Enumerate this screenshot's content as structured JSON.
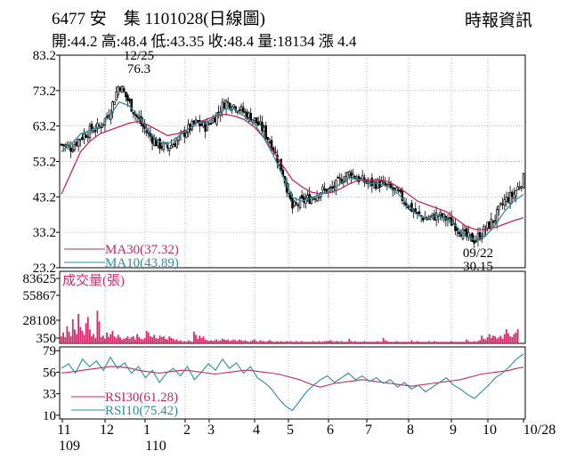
{
  "header": {
    "title": "6477 安　集 1101028(日線圖)",
    "source": "時報資訊",
    "stats": "開:44.2 高:48.4 低:43.35 收:48.4 量:18134 漲 4.4"
  },
  "colors": {
    "candle": "#000000",
    "ma30": "#c8285a",
    "ma10": "#2d8ca0",
    "volume": "#d8286e",
    "rsi30": "#c8285a",
    "rsi10": "#2d8ca0",
    "grid": "#999999"
  },
  "chart_data": [
    {
      "type": "candlestick",
      "panel": "price",
      "y_ticks": [
        "83.2",
        "73.2",
        "63.2",
        "53.2",
        "43.2",
        "33.2",
        "23.2"
      ],
      "ylim": [
        23.2,
        83.2
      ],
      "x_labels": [
        "11",
        "12",
        "1",
        "2",
        "3",
        "4",
        "5",
        "6",
        "7",
        "8",
        "9",
        "10",
        "10/28"
      ],
      "year_labels": [
        "109",
        "110"
      ],
      "annotations": [
        {
          "date": "12/25",
          "value": "76.3"
        },
        {
          "date": "09/22",
          "value": "30.15"
        }
      ],
      "series": [
        {
          "name": "MA30(37.32)",
          "type": "line"
        },
        {
          "name": "MA10(43.89)",
          "type": "line"
        }
      ],
      "close_path": [
        [
          0,
          58
        ],
        [
          5,
          57
        ],
        [
          10,
          60
        ],
        [
          15,
          62
        ],
        [
          20,
          63
        ],
        [
          25,
          67
        ],
        [
          30,
          75
        ],
        [
          35,
          70
        ],
        [
          40,
          65
        ],
        [
          45,
          61
        ],
        [
          50,
          58
        ],
        [
          55,
          57
        ],
        [
          60,
          59
        ],
        [
          65,
          62
        ],
        [
          70,
          64
        ],
        [
          75,
          63
        ],
        [
          80,
          66
        ],
        [
          85,
          70
        ],
        [
          90,
          69
        ],
        [
          95,
          67
        ],
        [
          100,
          65
        ],
        [
          105,
          62
        ],
        [
          110,
          57
        ],
        [
          115,
          50
        ],
        [
          120,
          40
        ],
        [
          125,
          42
        ],
        [
          130,
          43
        ],
        [
          135,
          45
        ],
        [
          140,
          45
        ],
        [
          145,
          48
        ],
        [
          150,
          50
        ],
        [
          155,
          48
        ],
        [
          160,
          47
        ],
        [
          165,
          47
        ],
        [
          170,
          46
        ],
        [
          175,
          44
        ],
        [
          180,
          41
        ],
        [
          185,
          38
        ],
        [
          190,
          37
        ],
        [
          195,
          38
        ],
        [
          200,
          37
        ],
        [
          205,
          35
        ],
        [
          210,
          32
        ],
        [
          215,
          31
        ],
        [
          220,
          34
        ],
        [
          225,
          37
        ],
        [
          230,
          42
        ],
        [
          235,
          44
        ],
        [
          240,
          48.4
        ]
      ],
      "ma30_path": [
        [
          0,
          44
        ],
        [
          5,
          50
        ],
        [
          10,
          56
        ],
        [
          15,
          59
        ],
        [
          20,
          61
        ],
        [
          25,
          62
        ],
        [
          30,
          63
        ],
        [
          35,
          64
        ],
        [
          40,
          64.5
        ],
        [
          45,
          63.5
        ],
        [
          50,
          62
        ],
        [
          55,
          60.5
        ],
        [
          60,
          61
        ],
        [
          65,
          62
        ],
        [
          70,
          64
        ],
        [
          75,
          65
        ],
        [
          80,
          66
        ],
        [
          85,
          66.5
        ],
        [
          90,
          66
        ],
        [
          95,
          65
        ],
        [
          100,
          63
        ],
        [
          105,
          60
        ],
        [
          110,
          56
        ],
        [
          115,
          52
        ],
        [
          120,
          48
        ],
        [
          125,
          46
        ],
        [
          130,
          44.5
        ],
        [
          135,
          44
        ],
        [
          140,
          44.5
        ],
        [
          145,
          45.5
        ],
        [
          150,
          47
        ],
        [
          155,
          48
        ],
        [
          160,
          48
        ],
        [
          165,
          48
        ],
        [
          170,
          47.5
        ],
        [
          175,
          46
        ],
        [
          180,
          44
        ],
        [
          185,
          42
        ],
        [
          190,
          41
        ],
        [
          195,
          40
        ],
        [
          200,
          39
        ],
        [
          205,
          37
        ],
        [
          210,
          35
        ],
        [
          215,
          34
        ],
        [
          220,
          34
        ],
        [
          225,
          34.5
        ],
        [
          230,
          35.5
        ],
        [
          235,
          36.5
        ],
        [
          240,
          37.3
        ]
      ],
      "ma10_path": [
        [
          0,
          56
        ],
        [
          5,
          58
        ],
        [
          10,
          61
        ],
        [
          15,
          62
        ],
        [
          20,
          63
        ],
        [
          25,
          66
        ],
        [
          30,
          70
        ],
        [
          35,
          69
        ],
        [
          40,
          66
        ],
        [
          45,
          62
        ],
        [
          50,
          59
        ],
        [
          55,
          58
        ],
        [
          60,
          60
        ],
        [
          65,
          62
        ],
        [
          70,
          64
        ],
        [
          75,
          64
        ],
        [
          80,
          66
        ],
        [
          85,
          68
        ],
        [
          90,
          68
        ],
        [
          95,
          66
        ],
        [
          100,
          64
        ],
        [
          105,
          60
        ],
        [
          110,
          55
        ],
        [
          115,
          49
        ],
        [
          120,
          43
        ],
        [
          125,
          42
        ],
        [
          130,
          43
        ],
        [
          135,
          44
        ],
        [
          140,
          45
        ],
        [
          145,
          47
        ],
        [
          150,
          49
        ],
        [
          155,
          48
        ],
        [
          160,
          47
        ],
        [
          165,
          47
        ],
        [
          170,
          46
        ],
        [
          175,
          44
        ],
        [
          180,
          41
        ],
        [
          185,
          38
        ],
        [
          190,
          37
        ],
        [
          195,
          38
        ],
        [
          200,
          37
        ],
        [
          205,
          35
        ],
        [
          210,
          32
        ],
        [
          215,
          31
        ],
        [
          220,
          32
        ],
        [
          225,
          35
        ],
        [
          230,
          39
        ],
        [
          235,
          42
        ],
        [
          240,
          43.9
        ]
      ]
    },
    {
      "type": "bar",
      "panel": "volume",
      "title": "成交量(張)",
      "y_ticks": [
        "83625",
        "55867",
        "28108",
        "350"
      ],
      "ylim": [
        350,
        83625
      ],
      "values": [
        9000,
        14000,
        8000,
        22000,
        15000,
        9000,
        31000,
        18000,
        12000,
        38000,
        21000,
        16000,
        11000,
        26000,
        34000,
        18000,
        9000,
        12000,
        7000,
        42000,
        28000,
        8000,
        10000,
        6000,
        14000,
        8000,
        12000,
        16000,
        9000,
        7000,
        11000,
        8000,
        5000,
        6000,
        7000,
        9000,
        6000,
        8000,
        9000,
        5000,
        12000,
        8000,
        6000,
        5000,
        7000,
        16000,
        14000,
        9000,
        8000,
        11000,
        7000,
        6000,
        10000,
        8000,
        9000,
        6000,
        5000,
        9000,
        7000,
        6000,
        4000,
        5000,
        3000,
        4000,
        2000,
        3000,
        2000,
        4000,
        3000,
        2000,
        15000,
        11000,
        6000,
        10000,
        7000,
        9000,
        5000,
        4000,
        3000,
        4000,
        3000,
        4000,
        5000,
        3000,
        4000,
        6000,
        5000,
        4000,
        5000,
        3000,
        4000,
        5000,
        4000,
        3000,
        5000,
        4000,
        3000,
        4000,
        3000,
        2000,
        3000,
        4000,
        5000,
        3000,
        2000,
        4000,
        3000,
        3000,
        2000,
        3000,
        4000,
        3000,
        2000,
        2000,
        3000,
        2000,
        3000,
        2000,
        2000,
        3000,
        2000,
        3000,
        2000,
        2000,
        3000,
        2000,
        2000,
        3000,
        2000,
        2000,
        2000,
        2000,
        2000,
        3000,
        2000,
        2000,
        3000,
        2000,
        2000,
        3000,
        3000,
        3000,
        4000,
        3000,
        2000,
        3000,
        3000,
        2000,
        3000,
        2000,
        2000,
        2000,
        6000,
        3000,
        2000,
        3000,
        2000,
        2000,
        2000,
        2000,
        3000,
        2000,
        2000,
        2000,
        2000,
        2000,
        2000,
        3000,
        2000,
        2000,
        7000,
        4000,
        3000,
        2000,
        2000,
        2000,
        2000,
        3000,
        2000,
        2000,
        2000,
        2000,
        2000,
        2000,
        2000,
        4000,
        2000,
        2000,
        3000,
        2000,
        2000,
        2000,
        2000,
        2000,
        3000,
        2000,
        2000,
        3000,
        2000,
        2000,
        2000,
        2000,
        2000,
        2000,
        2000,
        2000,
        3000,
        2000,
        2000,
        2000,
        2000,
        2000,
        2000,
        2000,
        5000,
        3000,
        2000,
        2000,
        3000,
        2000,
        3000,
        4000,
        10000,
        6000,
        5000,
        8000,
        12000,
        7000,
        10000,
        9000,
        6000,
        8000,
        10000,
        6000,
        12000,
        18000,
        13000,
        9000,
        8000,
        12000,
        14000,
        18134
      ]
    },
    {
      "type": "line",
      "panel": "rsi",
      "y_ticks": [
        "79",
        "56",
        "33",
        "10"
      ],
      "ylim": [
        10,
        79
      ],
      "series": [
        {
          "name": "RSI30(61.28)",
          "values": [
            55,
            56,
            57,
            58,
            59,
            60,
            61,
            62,
            62,
            61,
            60,
            58,
            57,
            56,
            55,
            56,
            57,
            58,
            58,
            57,
            56,
            55,
            54,
            55,
            56,
            57,
            58,
            58,
            57,
            56,
            55,
            54,
            52,
            50,
            48,
            45,
            42,
            40,
            42,
            44,
            45,
            46,
            47,
            48,
            47,
            46,
            45,
            44,
            43,
            42,
            41,
            42,
            43,
            44,
            45,
            46,
            47,
            48,
            50,
            52,
            54,
            55,
            56,
            57,
            58,
            60,
            61.28
          ]
        },
        {
          "name": "RSI10(75.42)",
          "values": [
            60,
            65,
            55,
            70,
            62,
            68,
            58,
            72,
            60,
            66,
            55,
            62,
            50,
            58,
            45,
            55,
            60,
            52,
            62,
            48,
            56,
            65,
            58,
            70,
            60,
            66,
            55,
            62,
            50,
            45,
            38,
            28,
            20,
            15,
            25,
            35,
            42,
            48,
            52,
            45,
            50,
            55,
            48,
            52,
            46,
            50,
            44,
            48,
            40,
            45,
            38,
            42,
            35,
            40,
            45,
            50,
            42,
            38,
            32,
            28,
            35,
            42,
            50,
            55,
            62,
            70,
            75.42
          ]
        }
      ]
    }
  ]
}
